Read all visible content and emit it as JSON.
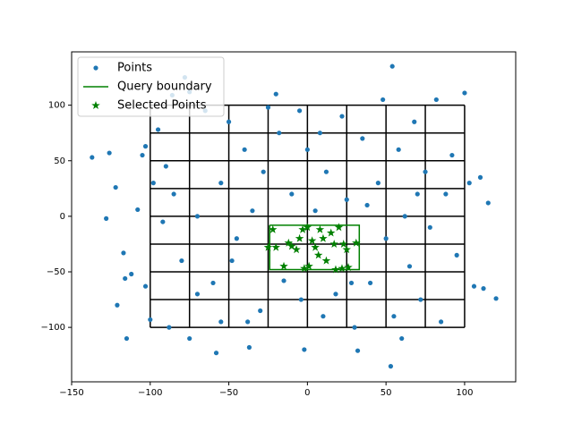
{
  "chart_data": {
    "type": "scatter",
    "xlim": [
      -150,
      132.5
    ],
    "ylim": [
      -149,
      148
    ],
    "xticks": [
      {
        "value": -150,
        "label": "−150"
      },
      {
        "value": -100,
        "label": "−100"
      },
      {
        "value": -50,
        "label": "−50"
      },
      0,
      50,
      100
    ],
    "yticks": [
      {
        "value": -100,
        "label": "−100"
      },
      {
        "value": -50,
        "label": "−50"
      },
      0,
      50,
      100
    ],
    "legend": "upper left",
    "quadtree": {
      "x": [
        -100,
        -75,
        -50,
        -25,
        0,
        25,
        50,
        75,
        100
      ],
      "y": [
        -100,
        -75,
        -50,
        -25,
        0,
        25,
        50,
        75,
        100
      ],
      "color": "#000000"
    },
    "series": [
      {
        "name": "Points",
        "type": "scatter",
        "color": "#1f77b4",
        "x": [
          -137,
          -128,
          -126,
          -122,
          -117,
          -116,
          -115,
          -112,
          -121,
          -103,
          -100,
          -108,
          -105,
          -103,
          -78,
          -75,
          -86,
          54,
          53,
          100,
          110,
          103,
          115,
          106,
          112,
          120,
          -58,
          -37,
          -2,
          32,
          -25,
          -95,
          -90,
          -85,
          -92,
          -80,
          -70,
          -88,
          -75,
          -60,
          -55,
          -50,
          -45,
          -40,
          -35,
          -30,
          -28,
          -20,
          -18,
          -10,
          -5,
          -4,
          0,
          5,
          10,
          12,
          18,
          22,
          25,
          30,
          35,
          40,
          45,
          48,
          50,
          55,
          58,
          62,
          65,
          68,
          72,
          75,
          78,
          82,
          85,
          88,
          92,
          95,
          -65,
          -48,
          -38,
          -15,
          38,
          60,
          -98,
          -70,
          8,
          28,
          70,
          -55
        ],
        "values": [
          53,
          -2,
          57,
          26,
          -33,
          -56,
          -110,
          -52,
          -80,
          -63,
          -93,
          6,
          55,
          63,
          125,
          112,
          109,
          135,
          -135,
          111,
          35,
          30,
          12,
          -63,
          -65,
          -74,
          -123,
          -118,
          -120,
          -121,
          98,
          78,
          45,
          20,
          -5,
          -40,
          -70,
          -100,
          -110,
          -60,
          30,
          85,
          -20,
          60,
          5,
          -85,
          40,
          110,
          75,
          20,
          95,
          -75,
          60,
          5,
          -90,
          40,
          -70,
          90,
          15,
          -100,
          70,
          -60,
          30,
          105,
          -20,
          -90,
          60,
          0,
          -45,
          85,
          -75,
          40,
          -10,
          105,
          -95,
          20,
          55,
          -35,
          95,
          -40,
          -95,
          -58,
          10,
          -110,
          30,
          0,
          75,
          -60,
          20,
          -95
        ]
      },
      {
        "name": "Query boundary",
        "type": "line",
        "color": "#008000",
        "x": [
          -24,
          33,
          33,
          -24,
          -24
        ],
        "values": [
          -8,
          -8,
          -48,
          -48,
          -8
        ]
      },
      {
        "name": "Selected Points",
        "type": "star",
        "color": "#008000",
        "x": [
          -22,
          -20,
          -15,
          -12,
          -10,
          -7,
          -5,
          -3,
          -2,
          0,
          1,
          3,
          5,
          7,
          10,
          12,
          15,
          17,
          18,
          20,
          22,
          23,
          25,
          26,
          31,
          -25,
          8
        ],
        "values": [
          -12,
          -28,
          -45,
          -24,
          -27,
          -30,
          -20,
          -12,
          -47,
          -10,
          -45,
          -22,
          -28,
          -35,
          -20,
          -40,
          -15,
          -25,
          -48,
          -10,
          -47,
          -25,
          -30,
          -46,
          -24,
          -28,
          -12
        ]
      }
    ]
  }
}
